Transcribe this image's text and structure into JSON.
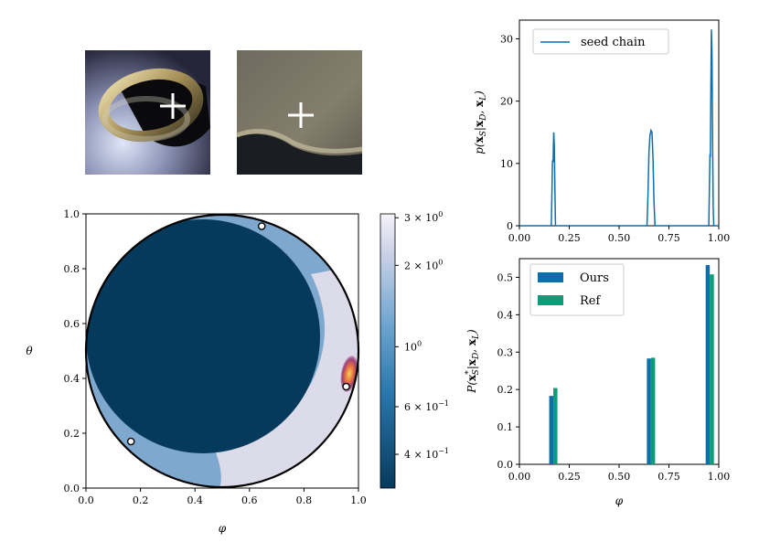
{
  "thumbnails": [
    {
      "name": "render-thumbnail"
    },
    {
      "name": "crop-thumbnail"
    }
  ],
  "chart_data": [
    {
      "type": "heatmap",
      "xlabel": "φ",
      "ylabel": "θ",
      "xlim": [
        0,
        1
      ],
      "ylim": [
        0,
        1
      ],
      "xticks": [
        "0.0",
        "0.2",
        "0.4",
        "0.6",
        "0.8",
        "1.0"
      ],
      "yticks": [
        "0.0",
        "0.2",
        "0.4",
        "0.6",
        "0.8",
        "1.0"
      ],
      "colorbar": {
        "scale": "log",
        "range": [
          0.3,
          3.1
        ],
        "ticks": [
          {
            "value": 0.4,
            "base": "4 × 10",
            "exp": "−1"
          },
          {
            "value": 0.6,
            "base": "6 × 10",
            "exp": "−1"
          },
          {
            "value": 1.0,
            "base": "10",
            "exp": "0"
          },
          {
            "value": 2.0,
            "base": "2 × 10",
            "exp": "0"
          },
          {
            "value": 3.0,
            "base": "3 × 10",
            "exp": "0"
          }
        ]
      },
      "regions": [
        {
          "name": "disk",
          "center": [
            0.5,
            0.5
          ],
          "radius": 0.5,
          "color": "#7fa8cf"
        },
        {
          "name": "dark-core",
          "center": [
            0.43,
            0.55
          ],
          "radius": 0.43,
          "color": "#063a5c"
        },
        {
          "name": "light-crescent",
          "color": "#dcdbe9"
        },
        {
          "name": "hot-spot",
          "center": [
            0.955,
            0.39
          ],
          "color": "#e8733c"
        }
      ],
      "markers": [
        [
          0.645,
          0.955
        ],
        [
          0.955,
          0.37
        ],
        [
          0.165,
          0.17
        ]
      ]
    },
    {
      "type": "line",
      "ylabel": "p(x_S|x_D, x_L)",
      "xlim": [
        0,
        1
      ],
      "ylim": [
        0,
        33
      ],
      "xticks": [
        "0.00",
        "0.25",
        "0.50",
        "0.75",
        "1.00"
      ],
      "yticks": [
        "0",
        "10",
        "20",
        "30"
      ],
      "legend": "top-left",
      "series": [
        {
          "name": "seed chain",
          "color": "#0b6fae",
          "x": [
            0.0,
            0.16,
            0.163,
            0.166,
            0.169,
            0.172,
            0.175,
            0.178,
            0.181,
            0.184,
            0.187,
            0.19,
            0.64,
            0.645,
            0.65,
            0.655,
            0.66,
            0.665,
            0.67,
            0.675,
            0.68,
            0.685,
            0.95,
            0.953,
            0.956,
            0.958,
            0.96,
            0.963,
            0.966,
            0.969,
            0.972,
            0.975,
            1.0
          ],
          "y": [
            0,
            0,
            5,
            10.5,
            10.2,
            15,
            13,
            6,
            0,
            0,
            0,
            0,
            0,
            5,
            12,
            14.5,
            15.3,
            15,
            11,
            4,
            0,
            0,
            0,
            6,
            11.5,
            11,
            20,
            31.5,
            28,
            14,
            3,
            0,
            0
          ]
        }
      ]
    },
    {
      "type": "bar",
      "xlabel": "φ",
      "ylabel": "P(x*_S|x_D, x_L)",
      "xlim": [
        0,
        1
      ],
      "ylim": [
        0,
        0.55
      ],
      "xticks": [
        "0.00",
        "0.25",
        "0.50",
        "0.75",
        "1.00"
      ],
      "yticks": [
        "0.0",
        "0.1",
        "0.2",
        "0.3",
        "0.4",
        "0.5"
      ],
      "legend": "top-left",
      "categories": [
        0.17,
        0.66,
        0.955
      ],
      "series": [
        {
          "name": "Ours",
          "color": "#0b6fae",
          "values": [
            0.183,
            0.283,
            0.533
          ]
        },
        {
          "name": "Ref",
          "color": "#0e9c78",
          "values": [
            0.204,
            0.285,
            0.508
          ]
        }
      ]
    }
  ]
}
